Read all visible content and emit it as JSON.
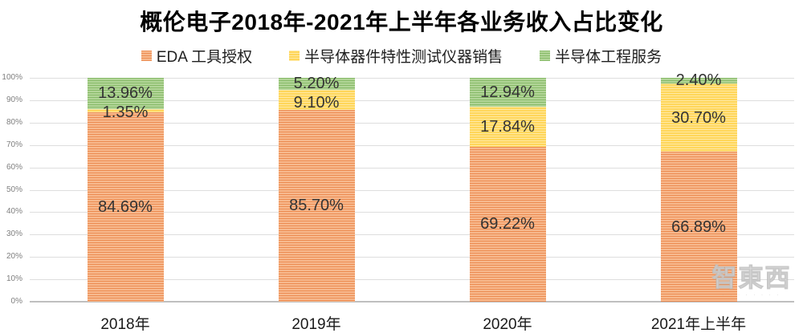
{
  "chart_data": {
    "type": "bar",
    "variant": "stacked-100-percent",
    "title": "概伦电子2018年-2021年上半年各业务收入占比变化",
    "legend_position": "top",
    "grid": true,
    "categories": [
      "2018年",
      "2019年",
      "2020年",
      "2021年上半年"
    ],
    "series": [
      {
        "name": "EDA 工具授权",
        "values": [
          84.69,
          85.7,
          69.22,
          66.89
        ],
        "labels": [
          "84.69%",
          "85.70%",
          "69.22%",
          "66.89%"
        ],
        "base_color": "#f7b98e",
        "stripe_color": "#ec8c52"
      },
      {
        "name": "半导体器件特性测试仪器销售",
        "values": [
          1.35,
          9.1,
          17.84,
          30.7
        ],
        "labels": [
          "1.35%",
          "9.10%",
          "17.84%",
          "30.70%"
        ],
        "base_color": "#ffd65a",
        "stripe_color": "#ffe9a3"
      },
      {
        "name": "半导体工程服务",
        "values": [
          13.96,
          5.2,
          12.94,
          2.4
        ],
        "labels": [
          "13.96%",
          "5.20%",
          "12.94%",
          "2.40%"
        ],
        "base_color": "#b2d598",
        "stripe_color": "#87ba68"
      }
    ],
    "y_axis": {
      "min": 0,
      "max": 100,
      "ticks": [
        "0%",
        "10%",
        "20%",
        "30%",
        "40%",
        "50%",
        "60%",
        "70%",
        "80%",
        "90%",
        "100%"
      ]
    },
    "colors": {
      "gridline": "#dedede",
      "axis_line": "#bfbfbf",
      "y_tick_text": "#7f7f7f",
      "data_label_text": "#333333"
    }
  },
  "watermark": {
    "text": "智東西",
    "subtext": "· · · · · · · ·"
  }
}
